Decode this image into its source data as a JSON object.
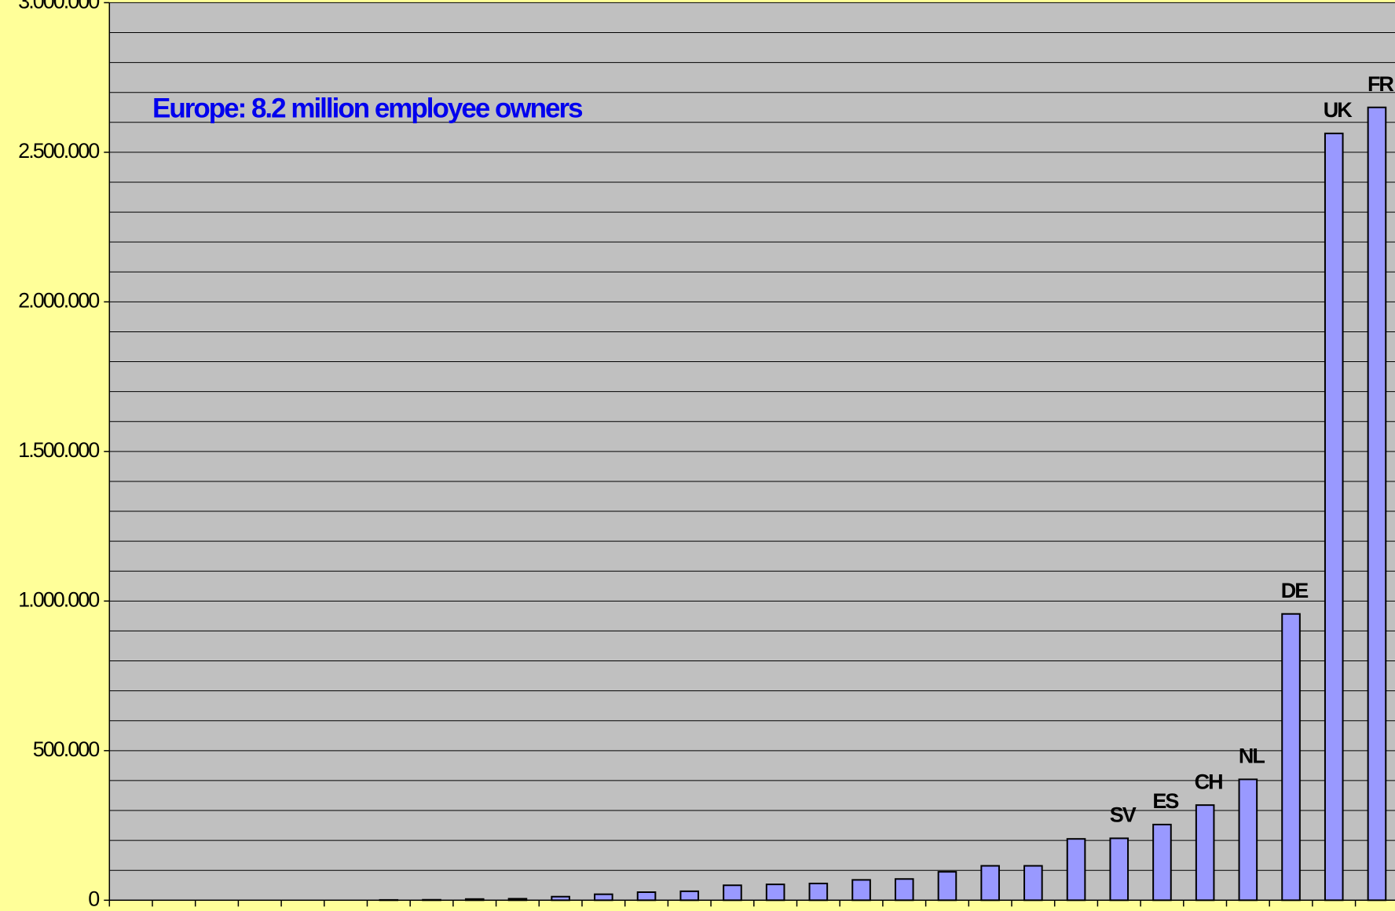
{
  "chart_data": {
    "type": "bar",
    "annotation": "Europe:  8.2 million employee owners",
    "categories": [
      null,
      null,
      null,
      null,
      null,
      null,
      null,
      null,
      null,
      null,
      null,
      null,
      null,
      null,
      null,
      null,
      null,
      null,
      null,
      null,
      null,
      null,
      null,
      "SV",
      "ES",
      "CH",
      "NL",
      "DE",
      "UK",
      "FR"
    ],
    "values": [
      0,
      0,
      0,
      0,
      0,
      0,
      1000,
      1500,
      4000,
      5000,
      12000,
      20000,
      27000,
      30000,
      50000,
      53000,
      56000,
      68000,
      71000,
      95000,
      115000,
      115000,
      205000,
      207000,
      253000,
      318000,
      404000,
      957000,
      2563000,
      2650000
    ],
    "color": "#9999ff",
    "ylim": [
      0,
      3000000
    ],
    "yticks": [
      0,
      {
        "value": 500000,
        "label": "500.000"
      },
      {
        "value": 1000000,
        "label": "1.000.000"
      },
      {
        "value": 1500000,
        "label": "1.500.000"
      },
      {
        "value": 2000000,
        "label": "2.000.000"
      },
      {
        "value": 2500000,
        "label": "2.500.000"
      },
      {
        "value": 3000000,
        "label": "3.000.000"
      }
    ],
    "ygrid": [
      0,
      100000,
      200000,
      300000,
      400000,
      500000,
      600000,
      700000,
      800000,
      900000,
      1000000,
      1100000,
      1200000,
      1300000,
      1400000,
      1500000,
      1600000,
      1700000,
      1800000,
      1900000,
      2000000,
      2100000,
      2200000,
      2300000,
      2400000,
      2500000,
      2600000,
      2700000,
      2800000,
      2900000,
      3000000
    ],
    "grid": true
  }
}
